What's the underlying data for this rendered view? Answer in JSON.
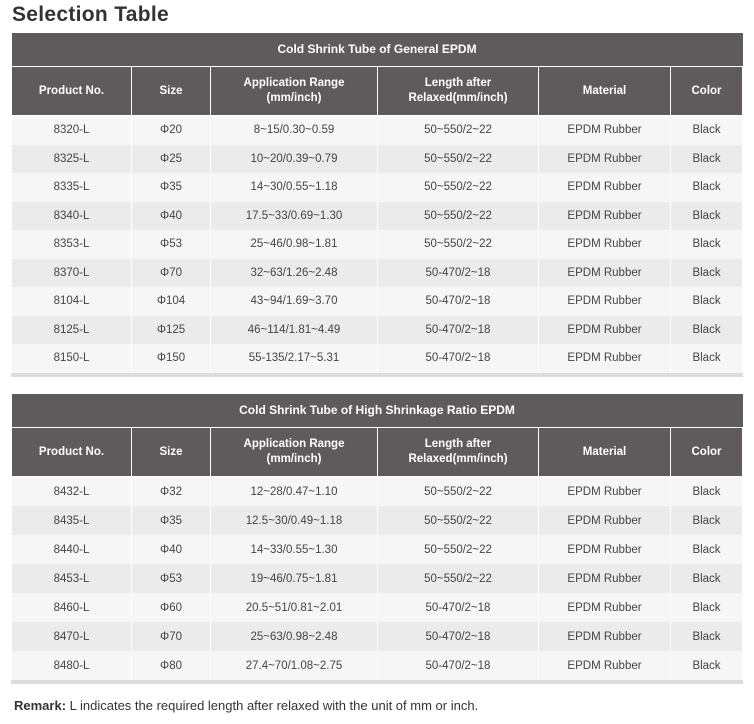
{
  "title": "Selection Table",
  "columns": [
    "Product No.",
    "Size",
    "Application Range\n(mm/inch)",
    "Length after\nRelaxed(mm/inch)",
    "Material",
    "Color"
  ],
  "tables": [
    {
      "caption": "Cold Shrink Tube of General EPDM",
      "rows": [
        [
          "8320-L",
          "Φ20",
          "8~15/0.30~0.59",
          "50~550/2~22",
          "EPDM Rubber",
          "Black"
        ],
        [
          "8325-L",
          "Φ25",
          "10~20/0.39~0.79",
          "50~550/2~22",
          "EPDM Rubber",
          "Black"
        ],
        [
          "8335-L",
          "Φ35",
          "14~30/0.55~1.18",
          "50~550/2~22",
          "EPDM Rubber",
          "Black"
        ],
        [
          "8340-L",
          "Φ40",
          "17.5~33/0.69~1.30",
          "50~550/2~22",
          "EPDM Rubber",
          "Black"
        ],
        [
          "8353-L",
          "Φ53",
          "25~46/0.98~1.81",
          "50~550/2~22",
          "EPDM Rubber",
          "Black"
        ],
        [
          "8370-L",
          "Φ70",
          "32~63/1.26~2.48",
          "50-470/2~18",
          "EPDM Rubber",
          "Black"
        ],
        [
          "8104-L",
          "Φ104",
          "43~94/1.69~3.70",
          "50-470/2~18",
          "EPDM Rubber",
          "Black"
        ],
        [
          "8125-L",
          "Φ125",
          "46~114/1.81~4.49",
          "50-470/2~18",
          "EPDM Rubber",
          "Black"
        ],
        [
          "8150-L",
          "Φ150",
          "55-135/2.17~5.31",
          "50-470/2~18",
          "EPDM Rubber",
          "Black"
        ]
      ]
    },
    {
      "caption": "Cold Shrink Tube of High Shrinkage Ratio EPDM",
      "rows": [
        [
          "8432-L",
          "Φ32",
          "12~28/0.47~1.10",
          "50~550/2~22",
          "EPDM Rubber",
          "Black"
        ],
        [
          "8435-L",
          "Φ35",
          "12.5~30/0.49~1.18",
          "50~550/2~22",
          "EPDM Rubber",
          "Black"
        ],
        [
          "8440-L",
          "Φ40",
          "14~33/0.55~1.30",
          "50~550/2~22",
          "EPDM Rubber",
          "Black"
        ],
        [
          "8453-L",
          "Φ53",
          "19~46/0.75~1.81",
          "50~550/2~22",
          "EPDM Rubber",
          "Black"
        ],
        [
          "8460-L",
          "Φ60",
          "20.5~51/0.81~2.01",
          "50-470/2~18",
          "EPDM Rubber",
          "Black"
        ],
        [
          "8470-L",
          "Φ70",
          "25~63/0.98~2.48",
          "50-470/2~18",
          "EPDM Rubber",
          "Black"
        ],
        [
          "8480-L",
          "Φ80",
          "27.4~70/1.08~2.75",
          "50-470/2~18",
          "EPDM Rubber",
          "Black"
        ]
      ]
    }
  ],
  "remark": {
    "label": "Remark:",
    "text": " L indicates the required length after relaxed with the unit of mm or inch."
  }
}
